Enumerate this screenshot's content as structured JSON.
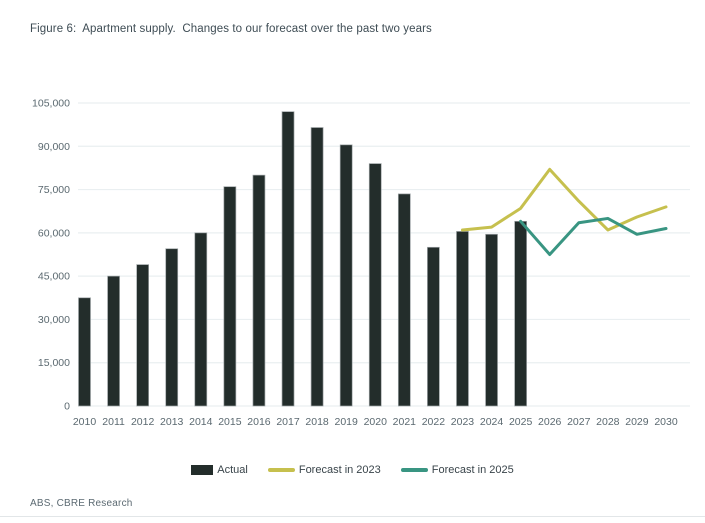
{
  "figure": {
    "title": "Figure 6:  Apartment supply.  Changes to our forecast over the past two years",
    "source": "ABS, CBRE Research"
  },
  "colors": {
    "actual_bar": "#232d2b",
    "bar_outline": "#9fa5a7",
    "forecast_2023_line": "#c6c04e",
    "forecast_2025_line": "#399582",
    "gridline": "#eaeff1",
    "axis_label": "#5b6970"
  },
  "chart_data": {
    "type": "bar",
    "subtype": "combo-bar-line",
    "title": "Figure 6:  Apartment supply.  Changes to our forecast over the past two years",
    "xlabel": "",
    "ylabel": "",
    "ylim": [
      0,
      105000
    ],
    "ytick_step": 15000,
    "ytick_labels": [
      "0",
      "15,000",
      "30,000",
      "45,000",
      "60,000",
      "75,000",
      "90,000",
      "105,000"
    ],
    "grid": "horizontal",
    "legend_position": "bottom",
    "categories": [
      2010,
      2011,
      2012,
      2013,
      2014,
      2015,
      2016,
      2017,
      2018,
      2019,
      2020,
      2021,
      2022,
      2023,
      2024,
      2025,
      2026,
      2027,
      2028,
      2029,
      2030
    ],
    "series": [
      {
        "name": "Actual",
        "type": "bar",
        "color": "#232d2b",
        "values": [
          37500,
          45000,
          49000,
          54500,
          60000,
          76000,
          80000,
          102000,
          96500,
          90500,
          84000,
          73500,
          55000,
          60500,
          59500,
          64000,
          null,
          null,
          null,
          null,
          null
        ]
      },
      {
        "name": "Forecast in 2023",
        "type": "line",
        "color": "#c6c04e",
        "values": [
          null,
          null,
          null,
          null,
          null,
          null,
          null,
          null,
          null,
          null,
          null,
          null,
          null,
          61000,
          62000,
          68500,
          82000,
          71000,
          61000,
          65500,
          69000
        ]
      },
      {
        "name": "Forecast in 2025",
        "type": "line",
        "color": "#399582",
        "values": [
          null,
          null,
          null,
          null,
          null,
          null,
          null,
          null,
          null,
          null,
          null,
          null,
          null,
          null,
          null,
          64000,
          52500,
          63500,
          65000,
          59500,
          61500
        ]
      }
    ]
  }
}
